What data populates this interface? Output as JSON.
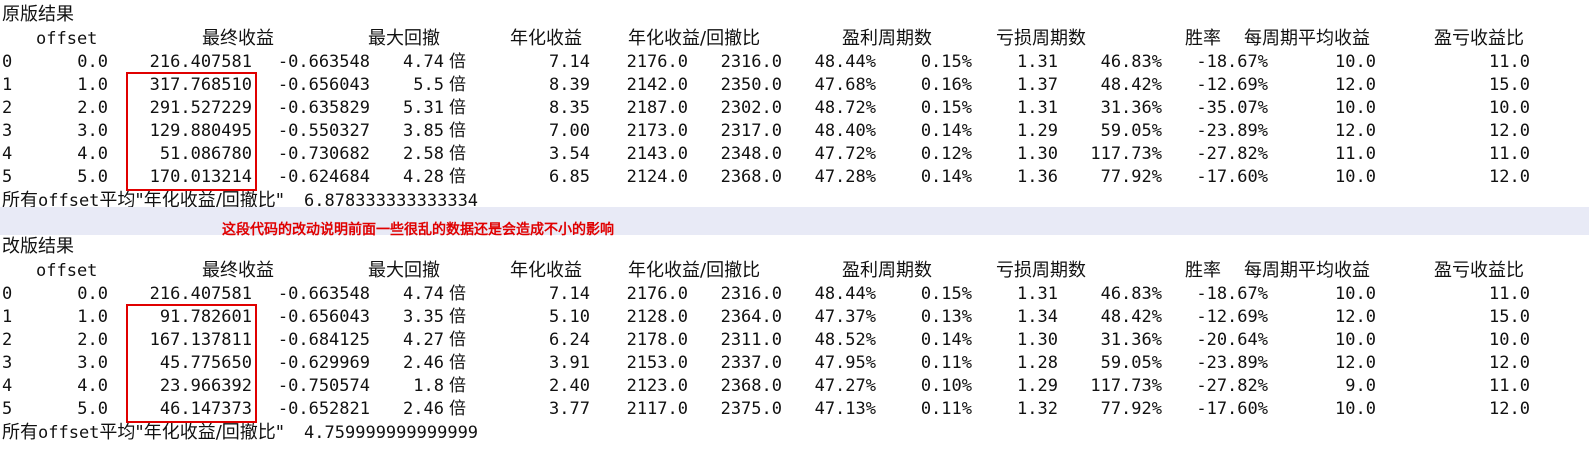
{
  "colors": {
    "accent_red": "#e00000",
    "divider": "#e8eaf6"
  },
  "headers": [
    "offset",
    "最终收益",
    "最大回撤",
    "年化收益",
    "年化收益/回撤比",
    "盈利周期数",
    "亏损周期数",
    "胜率",
    "每周期平均收益",
    "盈亏收益比"
  ],
  "original": {
    "title": "原版结果",
    "rows": [
      [
        "0",
        "0.0",
        "216.407581",
        "-0.663548",
        "4.74",
        "倍",
        "7.14",
        "2176.0",
        "2316.0",
        "48.44%",
        "0.15%",
        "1.31",
        "46.83%",
        "-18.67%",
        "10.0",
        "11.0"
      ],
      [
        "1",
        "1.0",
        "317.768510",
        "-0.656043",
        "5.5",
        "倍",
        "8.39",
        "2142.0",
        "2350.0",
        "47.68%",
        "0.16%",
        "1.37",
        "48.42%",
        "-12.69%",
        "12.0",
        "15.0"
      ],
      [
        "2",
        "2.0",
        "291.527229",
        "-0.635829",
        "5.31",
        "倍",
        "8.35",
        "2187.0",
        "2302.0",
        "48.72%",
        "0.15%",
        "1.31",
        "31.36%",
        "-35.07%",
        "10.0",
        "10.0"
      ],
      [
        "3",
        "3.0",
        "129.880495",
        "-0.550327",
        "3.85",
        "倍",
        "7.00",
        "2173.0",
        "2317.0",
        "48.40%",
        "0.14%",
        "1.29",
        "59.05%",
        "-23.89%",
        "12.0",
        "12.0"
      ],
      [
        "4",
        "4.0",
        "51.086780",
        "-0.730682",
        "2.58",
        "倍",
        "3.54",
        "2143.0",
        "2348.0",
        "47.72%",
        "0.12%",
        "1.30",
        "117.73%",
        "-27.82%",
        "11.0",
        "11.0"
      ],
      [
        "5",
        "5.0",
        "170.013214",
        "-0.624684",
        "4.28",
        "倍",
        "6.85",
        "2124.0",
        "2368.0",
        "47.28%",
        "0.14%",
        "1.36",
        "77.92%",
        "-17.60%",
        "10.0",
        "12.0"
      ]
    ],
    "summary_label_prefix": "所有",
    "summary_label_mono": "offset",
    "summary_label_suffix": "平均\"年化收益/回撤比\"",
    "summary_value": "6.878333333333334"
  },
  "note": "这段代码的改动说明前面一些很乱的数据还是会造成不小的影响",
  "revised": {
    "title": "改版结果",
    "rows": [
      [
        "0",
        "0.0",
        "216.407581",
        "-0.663548",
        "4.74",
        "倍",
        "7.14",
        "2176.0",
        "2316.0",
        "48.44%",
        "0.15%",
        "1.31",
        "46.83%",
        "-18.67%",
        "10.0",
        "11.0"
      ],
      [
        "1",
        "1.0",
        "91.782601",
        "-0.656043",
        "3.35",
        "倍",
        "5.10",
        "2128.0",
        "2364.0",
        "47.37%",
        "0.13%",
        "1.34",
        "48.42%",
        "-12.69%",
        "12.0",
        "15.0"
      ],
      [
        "2",
        "2.0",
        "167.137811",
        "-0.684125",
        "4.27",
        "倍",
        "6.24",
        "2178.0",
        "2311.0",
        "48.52%",
        "0.14%",
        "1.30",
        "31.36%",
        "-20.64%",
        "10.0",
        "10.0"
      ],
      [
        "3",
        "3.0",
        "45.775650",
        "-0.629969",
        "2.46",
        "倍",
        "3.91",
        "2153.0",
        "2337.0",
        "47.95%",
        "0.11%",
        "1.28",
        "59.05%",
        "-23.89%",
        "12.0",
        "12.0"
      ],
      [
        "4",
        "4.0",
        "23.966392",
        "-0.750574",
        "1.8",
        "倍",
        "2.40",
        "2123.0",
        "2368.0",
        "47.27%",
        "0.10%",
        "1.29",
        "117.73%",
        "-27.82%",
        "9.0",
        "11.0"
      ],
      [
        "5",
        "5.0",
        "46.147373",
        "-0.652821",
        "2.46",
        "倍",
        "3.77",
        "2117.0",
        "2375.0",
        "47.13%",
        "0.11%",
        "1.32",
        "77.92%",
        "-17.60%",
        "10.0",
        "12.0"
      ]
    ],
    "summary_label_prefix": "所有",
    "summary_label_mono": "offset",
    "summary_label_suffix": "平均\"年化收益/回撤比\"",
    "summary_value": "4.759999999999999"
  }
}
